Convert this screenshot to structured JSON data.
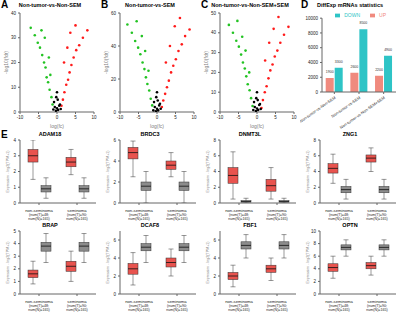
{
  "chart_data": [
    {
      "type": "scatter",
      "panel": "A",
      "title": "Non-tumor-vs-Non-SEM",
      "x_label": "log(fc)",
      "y_label": "-log10(fdr)",
      "xlim": [
        -10,
        10
      ],
      "xticks": [
        -10,
        -5,
        0,
        5,
        10
      ],
      "ylim": [
        0,
        40
      ],
      "yticks": [
        0,
        10,
        20,
        30,
        40
      ],
      "series": [
        {
          "color": "#22c322",
          "x": [
            -1.2,
            -1.5,
            -2,
            -2.4,
            -2.8,
            -3.1,
            -3.5,
            -4,
            -4.6,
            -5.2,
            -6,
            -7.1,
            -1.8,
            -2.2,
            -3.3,
            -4.2
          ],
          "values": [
            3,
            6,
            9,
            12,
            14,
            18,
            20,
            23,
            26,
            28,
            31,
            34,
            15,
            22,
            30,
            33
          ]
        },
        {
          "color": "#ff1a1a",
          "x": [
            1.2,
            1.6,
            2,
            2.5,
            3,
            3.4,
            3.9,
            4.5,
            5.2,
            6,
            7,
            8.2,
            1.9,
            2.8,
            3.6,
            5
          ],
          "values": [
            2.5,
            5,
            8,
            11,
            13,
            16,
            19,
            22,
            25,
            27,
            30,
            33,
            20,
            26,
            32,
            35
          ]
        },
        {
          "color": "#000000",
          "x": [
            -1,
            -0.6,
            -0.3,
            0,
            0.3,
            0.6,
            1,
            -0.8,
            0.8,
            -0.2,
            0.2,
            0
          ],
          "values": [
            1,
            2,
            0.5,
            1.5,
            0.8,
            2.5,
            1.2,
            4,
            3,
            6,
            5,
            8
          ]
        }
      ]
    },
    {
      "type": "scatter",
      "panel": "B",
      "title": "Non-tumor-vs-SEM",
      "x_label": "log(fc)",
      "y_label": "-log10(fdr)",
      "xlim": [
        -10,
        10
      ],
      "xticks": [
        -10,
        -5,
        0,
        5,
        10
      ],
      "ylim": [
        0,
        60
      ],
      "yticks": [
        0,
        20,
        40,
        60
      ],
      "series": [
        {
          "color": "#22c322",
          "x": [
            -1.3,
            -1.7,
            -2.1,
            -2.6,
            -3,
            -3.4,
            -3.9,
            -4.5,
            -5.1,
            -5.9,
            -6.8,
            -8,
            -2.3,
            -3.2,
            -4.1,
            -5.5
          ],
          "values": [
            4,
            8,
            13,
            17,
            21,
            26,
            30,
            35,
            39,
            43,
            48,
            53,
            25,
            37,
            46,
            55
          ]
        },
        {
          "color": "#ff1a1a",
          "x": [
            1.3,
            1.7,
            2.2,
            2.7,
            3.2,
            3.8,
            4.4,
            5.1,
            5.8,
            6.7,
            7.6,
            8.8,
            2.4,
            3.5,
            4.8,
            6.2
          ],
          "values": [
            3,
            7,
            11,
            15,
            19,
            24,
            28,
            32,
            37,
            41,
            46,
            50,
            30,
            40,
            52,
            57
          ]
        },
        {
          "color": "#000000",
          "x": [
            -1,
            -0.6,
            -0.3,
            0,
            0.3,
            0.6,
            1,
            -0.8,
            0.8,
            -0.2,
            0.2,
            0
          ],
          "values": [
            1,
            3,
            0.5,
            2,
            1,
            4,
            2,
            6,
            5,
            9,
            7,
            12
          ]
        }
      ]
    },
    {
      "type": "scatter",
      "panel": "C",
      "title": "Non-tumor-vs-Non-SEM+SEM",
      "x_label": "log(fc)",
      "y_label": "-log10(fdr)",
      "xlim": [
        -10,
        10
      ],
      "xticks": [
        -10,
        -5,
        0,
        5,
        10
      ],
      "ylim": [
        0,
        50
      ],
      "yticks": [
        0,
        10,
        20,
        30,
        40,
        50
      ],
      "series": [
        {
          "color": "#22c322",
          "x": [
            -1.2,
            -1.6,
            -2,
            -2.5,
            -2.9,
            -3.3,
            -3.8,
            -4.3,
            -4.9,
            -5.6,
            -6.5,
            -7.6,
            -2.1,
            -3.1,
            -4,
            -5.3
          ],
          "values": [
            3,
            7,
            11,
            14,
            18,
            22,
            25,
            29,
            33,
            36,
            40,
            44,
            20,
            31,
            38,
            46
          ]
        },
        {
          "color": "#ff1a1a",
          "x": [
            1.2,
            1.6,
            2.1,
            2.6,
            3.1,
            3.6,
            4.2,
            4.8,
            5.5,
            6.3,
            7.3,
            8.5,
            2.2,
            3.3,
            4.5,
            5.8
          ],
          "values": [
            2,
            6,
            10,
            13,
            17,
            21,
            24,
            28,
            31,
            35,
            39,
            43,
            26,
            35,
            42,
            48
          ]
        },
        {
          "color": "#000000",
          "x": [
            -1,
            -0.6,
            -0.3,
            0,
            0.3,
            0.6,
            1,
            -0.8,
            0.8,
            -0.2,
            0.2,
            0
          ],
          "values": [
            1,
            2.5,
            0.5,
            1.8,
            1,
            3.5,
            1.5,
            5,
            4,
            7,
            6,
            10
          ]
        }
      ]
    },
    {
      "type": "bar",
      "panel": "D",
      "title": "DiffExp mRNAs statistics",
      "categories": [
        "Non-tumor-vs-Non-SEM",
        "Non-tumor-vs-SEM",
        "Non-tumor-vs-Non-SEM+SEM"
      ],
      "ylim": [
        0,
        10000
      ],
      "yticks": [
        0,
        2000,
        4000,
        6000,
        8000,
        10000
      ],
      "legend": "top-right",
      "data_labels": true,
      "series": [
        {
          "name": "UP",
          "color": "#f08a7e",
          "values": [
            1900,
            2600,
            2200
          ]
        },
        {
          "name": "DOWN",
          "color": "#2ec4c6",
          "values": [
            3300,
            8500,
            4900
          ]
        }
      ]
    },
    {
      "type": "boxplot",
      "panel": "E",
      "title": "ADAM18",
      "y_label": "Expression - log2(TPM+1)",
      "categories": [
        "non-seminoma",
        "seminoma"
      ],
      "category_notes": [
        "(num(T)=48; num(N)=165)",
        "(num(T)=90; num(N)=165)"
      ],
      "ylim": [
        0,
        4
      ],
      "yticks": [
        0,
        1,
        2,
        3,
        4
      ],
      "series": [
        {
          "color": "#e8534e",
          "values": [
            [
              1.5,
              2.6,
              3.0,
              3.4,
              4.0
            ],
            [
              1.8,
              2.3,
              2.6,
              2.9,
              3.4
            ]
          ]
        },
        {
          "color": "#8c8c8c",
          "values": [
            [
              0.3,
              0.7,
              0.9,
              1.1,
              1.6
            ],
            [
              0.3,
              0.7,
              0.9,
              1.1,
              1.6
            ]
          ]
        }
      ]
    },
    {
      "type": "boxplot",
      "title": "BRDC3",
      "y_label": "Expression - log2(TPM+1)",
      "categories": [
        "non-seminoma",
        "seminoma"
      ],
      "category_notes": [
        "(num(T)=48; num(N)=165)",
        "(num(T)=90; num(N)=165)"
      ],
      "ylim": [
        0,
        6
      ],
      "yticks": [
        0,
        2,
        4,
        6
      ],
      "series": [
        {
          "color": "#e8534e",
          "values": [
            [
              2.5,
              4.2,
              4.8,
              5.3,
              5.9
            ],
            [
              2.5,
              3.2,
              3.6,
              4.0,
              4.8
            ]
          ]
        },
        {
          "color": "#8c8c8c",
          "values": [
            [
              0,
              1.2,
              1.6,
              2.0,
              3.0
            ],
            [
              0,
              1.2,
              1.6,
              2.0,
              3.0
            ]
          ]
        }
      ]
    },
    {
      "type": "boxplot",
      "title": "DNMT3L",
      "y_label": "Expression - log2(TPM+1)",
      "categories": [
        "non-seminoma",
        "seminoma"
      ],
      "category_notes": [
        "(num(T)=48; num(N)=165)",
        "(num(T)=90; num(N)=165)"
      ],
      "ylim": [
        0,
        8
      ],
      "yticks": [
        0,
        2,
        4,
        6,
        8
      ],
      "series": [
        {
          "color": "#e8534e",
          "values": [
            [
              0.5,
              2.5,
              3.5,
              4.5,
              6.5
            ],
            [
              0.5,
              1.5,
              2.2,
              3.0,
              4.5
            ]
          ]
        },
        {
          "color": "#8c8c8c",
          "values": [
            [
              0,
              0.1,
              0.2,
              0.3,
              0.6
            ],
            [
              0,
              0.1,
              0.2,
              0.3,
              0.6
            ]
          ]
        }
      ]
    },
    {
      "type": "boxplot",
      "title": "ZNG1",
      "y_label": "Expression - log2(TPM+1)",
      "categories": [
        "non-seminoma",
        "seminoma"
      ],
      "category_notes": [
        "(num(T)=48; num(N)=165)",
        "(num(T)=90; num(N)=165)"
      ],
      "ylim": [
        0,
        8
      ],
      "yticks": [
        0,
        2,
        4,
        6,
        8
      ],
      "series": [
        {
          "color": "#e8534e",
          "values": [
            [
              2.5,
              3.8,
              4.4,
              5.0,
              6.2
            ],
            [
              4.0,
              5.2,
              5.7,
              6.1,
              7.0
            ]
          ]
        },
        {
          "color": "#8c8c8c",
          "values": [
            [
              0.5,
              1.3,
              1.7,
              2.1,
              3.0
            ],
            [
              0.5,
              1.3,
              1.7,
              2.1,
              3.0
            ]
          ]
        }
      ]
    },
    {
      "type": "boxplot",
      "title": "BRAP",
      "y_label": "Expression - log2(TPM+1)",
      "categories": [
        "non-seminoma",
        "seminoma"
      ],
      "category_notes": [
        "(num(T)=48; num(N)=165)",
        "(num(T)=90; num(N)=165)"
      ],
      "ylim": [
        0,
        5
      ],
      "yticks": [
        0,
        1,
        2,
        3,
        4,
        5
      ],
      "series": [
        {
          "color": "#e8534e",
          "values": [
            [
              0.8,
              1.3,
              1.6,
              1.9,
              2.6
            ],
            [
              1.0,
              1.8,
              2.2,
              2.6,
              3.4
            ]
          ]
        },
        {
          "color": "#8c8c8c",
          "values": [
            [
              2.5,
              3.4,
              3.8,
              4.1,
              4.8
            ],
            [
              2.5,
              3.4,
              3.8,
              4.1,
              4.8
            ]
          ]
        }
      ]
    },
    {
      "type": "boxplot",
      "title": "DCAF8",
      "y_label": "Expression - log2(TPM+1)",
      "categories": [
        "non-seminoma",
        "seminoma"
      ],
      "category_notes": [
        "(num(T)=48; num(N)=165)",
        "(num(T)=90; num(N)=165)"
      ],
      "ylim": [
        0,
        7
      ],
      "yticks": [
        0,
        2,
        4,
        6
      ],
      "series": [
        {
          "color": "#e8534e",
          "values": [
            [
              1,
              2.2,
              2.8,
              3.4,
              4.6
            ],
            [
              2.0,
              3.0,
              3.5,
              4.0,
              5.0
            ]
          ]
        },
        {
          "color": "#8c8c8c",
          "values": [
            [
              3.5,
              4.8,
              5.2,
              5.6,
              6.5
            ],
            [
              3.5,
              4.8,
              5.2,
              5.6,
              6.5
            ]
          ]
        }
      ]
    },
    {
      "type": "boxplot",
      "title": "FBF1",
      "y_label": "Expression - log2(TPM+1)",
      "categories": [
        "non-seminoma",
        "seminoma"
      ],
      "category_notes": [
        "(num(T)=48; num(N)=165)",
        "(num(T)=90; num(N)=165)"
      ],
      "ylim": [
        0,
        7
      ],
      "yticks": [
        0,
        2,
        4,
        6
      ],
      "series": [
        {
          "color": "#e8534e",
          "values": [
            [
              0.8,
              1.6,
              2.0,
              2.4,
              3.2
            ],
            [
              1.5,
              2.4,
              2.8,
              3.2,
              4.0
            ]
          ]
        },
        {
          "color": "#8c8c8c",
          "values": [
            [
              4.0,
              5.0,
              5.4,
              5.8,
              6.6
            ],
            [
              4.0,
              5.0,
              5.4,
              5.8,
              6.6
            ]
          ]
        }
      ]
    },
    {
      "type": "boxplot",
      "title": "OPTN",
      "y_label": "Expression - log2(TPM+1)",
      "categories": [
        "non-seminoma",
        "seminoma"
      ],
      "category_notes": [
        "(num(T)=48; num(N)=165)",
        "(num(T)=90; num(N)=165)"
      ],
      "ylim": [
        0,
        10
      ],
      "yticks": [
        0,
        2,
        4,
        6,
        8,
        10
      ],
      "series": [
        {
          "color": "#e8534e",
          "values": [
            [
              2.5,
              3.6,
              4.2,
              4.8,
              6.0
            ],
            [
              3.0,
              4.0,
              4.5,
              5.0,
              6.0
            ]
          ]
        },
        {
          "color": "#8c8c8c",
          "values": [
            [
              6.0,
              7.0,
              7.4,
              7.8,
              8.6
            ],
            [
              6.0,
              7.0,
              7.4,
              7.8,
              8.6
            ]
          ]
        }
      ]
    }
  ]
}
